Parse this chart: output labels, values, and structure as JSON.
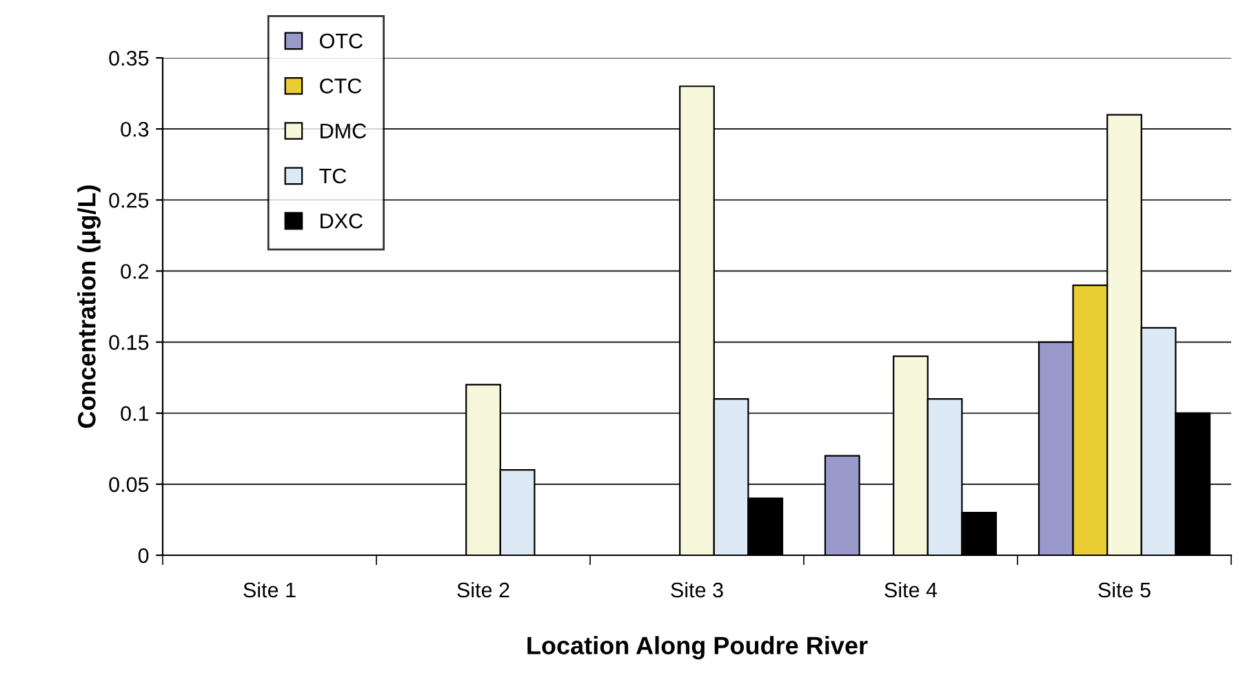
{
  "chart_data": {
    "type": "bar",
    "xlabel": "Location Along Poudre River",
    "ylabel": "Concentration (μg/L)",
    "categories": [
      "Site 1",
      "Site 2",
      "Site 3",
      "Site 4",
      "Site 5"
    ],
    "series": [
      {
        "name": "OTC",
        "color": "#9999cc",
        "values": [
          null,
          null,
          null,
          0.07,
          0.15
        ]
      },
      {
        "name": "CTC",
        "color": "#eacd32",
        "values": [
          null,
          null,
          null,
          null,
          0.19
        ]
      },
      {
        "name": "DMC",
        "color": "#f7f7dc",
        "values": [
          null,
          0.12,
          0.33,
          0.14,
          0.31
        ]
      },
      {
        "name": "TC",
        "color": "#dde9f5",
        "values": [
          null,
          0.06,
          0.11,
          0.11,
          0.16
        ]
      },
      {
        "name": "DXC",
        "color": "#000000",
        "values": [
          null,
          null,
          0.04,
          0.03,
          0.1
        ]
      }
    ],
    "ylim": [
      0,
      0.35
    ],
    "yticks": [
      0,
      0.05,
      0.1,
      0.15,
      0.2,
      0.25,
      0.3,
      0.35
    ],
    "grid": "y",
    "legend": "top left"
  }
}
